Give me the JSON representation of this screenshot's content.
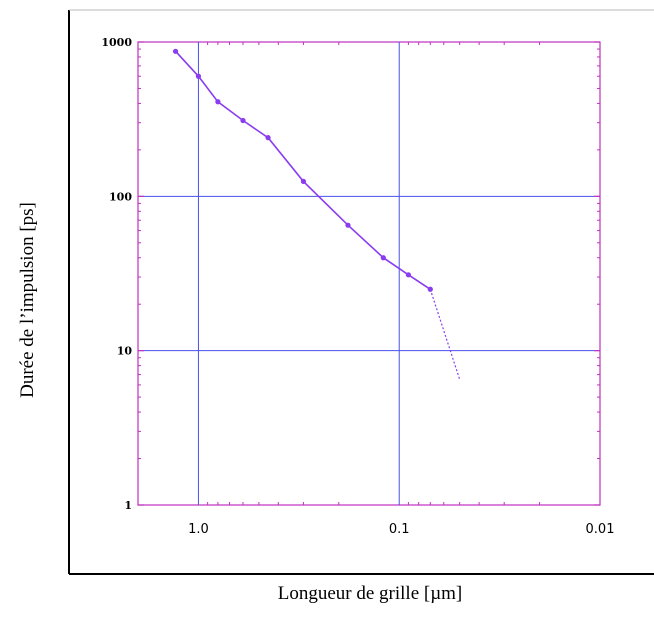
{
  "chart_data": {
    "type": "line",
    "title": "",
    "xlabel": "Longueur de grille [µm]",
    "ylabel": "Durée de l’impulsion  [ps]",
    "x_scale": "log",
    "y_scale": "log",
    "x_reversed": true,
    "xlim": [
      2.0,
      0.01
    ],
    "ylim": [
      1,
      1000
    ],
    "x_ticks": [
      1.0,
      0.1,
      0.01
    ],
    "x_tick_labels": [
      "1.0",
      "0.1",
      "0.01"
    ],
    "y_ticks": [
      1,
      10,
      100,
      1000
    ],
    "y_tick_labels": [
      "1",
      "10",
      "100",
      "1000"
    ],
    "grid": "major",
    "legend": "none",
    "colors": {
      "line": "#8a3cf0",
      "grid": "#4a50ee",
      "frame": "#c030c0"
    },
    "series": [
      {
        "style": "solid-with-markers",
        "x": [
          1.3,
          1.0,
          0.8,
          0.6,
          0.45,
          0.3,
          0.18,
          0.12,
          0.09,
          0.07
        ],
        "y": [
          870,
          600,
          410,
          310,
          240,
          125,
          65,
          40,
          31,
          25
        ]
      },
      {
        "style": "dotted",
        "x": [
          0.07,
          0.05
        ],
        "y": [
          25,
          6.5
        ]
      }
    ]
  }
}
